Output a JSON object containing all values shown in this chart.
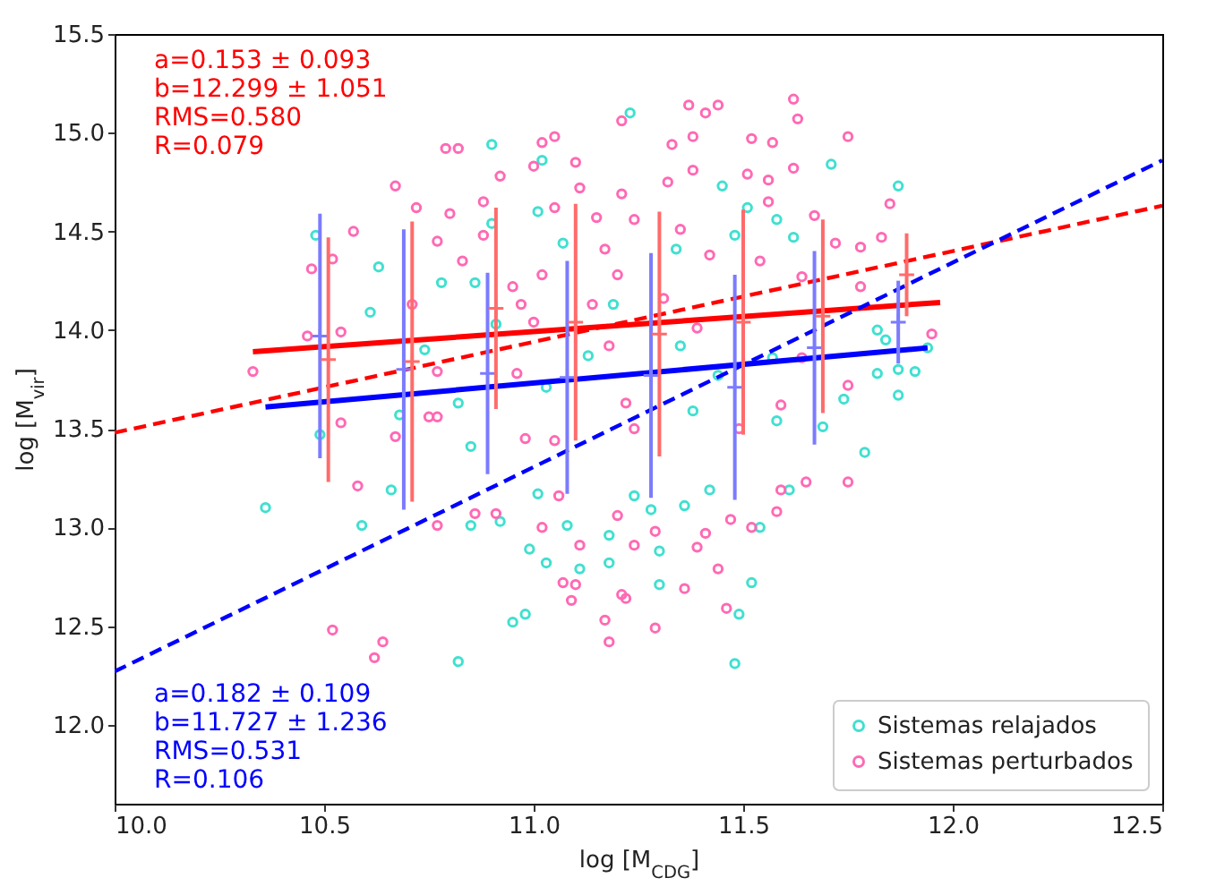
{
  "chart_data": {
    "type": "scatter",
    "xlabel": "log [M$_{CDG}$]",
    "ylabel": "log [M$_{vir}$]",
    "xlim": [
      10.0,
      12.5
    ],
    "ylim": [
      11.6,
      15.5
    ],
    "xticks": [
      {
        "value": 10,
        "label": "10.0"
      },
      {
        "value": 10.5,
        "label": "10.5"
      },
      {
        "value": 11,
        "label": "11.0"
      },
      {
        "value": 11.5,
        "label": "11.5"
      },
      {
        "value": 12,
        "label": "12.0"
      },
      {
        "value": 12.5,
        "label": "12.5"
      }
    ],
    "yticks": [
      {
        "value": 12,
        "label": "12.0"
      },
      {
        "value": 12.5,
        "label": "12.5"
      },
      {
        "value": 13,
        "label": "13.0"
      },
      {
        "value": 13.5,
        "label": "13.5"
      },
      {
        "value": 14,
        "label": "14.0"
      },
      {
        "value": 14.5,
        "label": "14.5"
      },
      {
        "value": 15,
        "label": "15.0"
      },
      {
        "value": 15.5,
        "label": "15.5"
      }
    ],
    "marker": "circle",
    "legend": "bottom right",
    "annotations": [
      "a=0.153 ± 0.093",
      "b=12.299 ± 1.051",
      "RMS=0.580",
      "R=0.079",
      "a=0.182 ± 0.109",
      "b=11.727 ± 1.236",
      "RMS=0.531",
      "R=0.106"
    ],
    "series": [
      {
        "name": "Sistemas relajados",
        "color": "#40e0d0",
        "x": [
          11.23,
          10.9,
          11.02,
          11.01,
          10.9,
          10.48,
          10.63,
          10.61,
          10.78,
          10.86,
          10.91,
          10.74,
          10.82,
          10.68,
          10.49,
          10.85,
          11.03,
          11.13,
          11.19,
          11.07,
          10.36,
          10.59,
          10.66,
          10.85,
          10.92,
          11.01,
          10.99,
          11.03,
          10.98,
          10.95,
          10.82,
          11.08,
          11.11,
          11.18,
          11.18,
          11.87,
          11.71,
          11.51,
          11.58,
          11.45,
          11.48,
          11.62,
          11.34,
          11.82,
          11.84,
          11.82,
          11.87,
          11.91,
          11.87,
          11.94,
          11.79,
          11.74,
          11.57,
          11.44,
          11.35,
          11.38,
          11.58,
          11.69,
          11.48,
          11.49,
          11.52,
          11.3,
          11.3,
          11.54,
          11.36,
          11.42,
          11.61,
          11.28,
          11.24
        ],
        "values": [
          15.1,
          14.94,
          14.86,
          14.6,
          14.54,
          14.48,
          14.32,
          14.09,
          14.24,
          14.24,
          14.03,
          13.9,
          13.63,
          13.57,
          13.47,
          13.41,
          13.71,
          13.87,
          14.13,
          14.44,
          13.1,
          13.01,
          13.19,
          13.01,
          13.03,
          13.17,
          12.89,
          12.82,
          12.56,
          12.52,
          12.32,
          13.01,
          12.79,
          12.82,
          12.96,
          14.73,
          14.84,
          14.62,
          14.56,
          14.73,
          14.48,
          14.47,
          14.41,
          14.0,
          13.95,
          13.78,
          13.8,
          13.79,
          13.67,
          13.91,
          13.38,
          13.65,
          13.86,
          13.77,
          13.92,
          13.59,
          13.54,
          13.51,
          12.31,
          12.56,
          12.72,
          12.71,
          12.88,
          13.0,
          13.11,
          13.19,
          13.19,
          13.09,
          13.16
        ]
      },
      {
        "name": "Sistemas perturbados",
        "color": "#ff69b4",
        "x": [
          10.33,
          10.46,
          10.47,
          10.52,
          10.54,
          10.54,
          10.57,
          10.67,
          10.72,
          10.71,
          10.75,
          10.79,
          10.82,
          10.77,
          10.8,
          10.77,
          10.88,
          10.88,
          10.83,
          10.95,
          10.97,
          11.0,
          10.96,
          10.98,
          11.02,
          11.05,
          11.0,
          10.92,
          11.05,
          11.02,
          11.1,
          11.11,
          11.15,
          11.17,
          11.14,
          11.21,
          11.21,
          11.2,
          11.18,
          11.22,
          11.05,
          11.24,
          10.58,
          10.67,
          10.77,
          10.77,
          10.52,
          10.64,
          10.62,
          10.86,
          10.91,
          11.02,
          11.06,
          11.07,
          11.1,
          11.09,
          11.11,
          11.17,
          11.18,
          11.2,
          11.21,
          11.37,
          11.44,
          11.41,
          11.62,
          11.63,
          11.33,
          11.38,
          11.52,
          11.57,
          11.75,
          11.62,
          11.51,
          11.38,
          11.32,
          11.56,
          11.67,
          11.56,
          11.85,
          11.83,
          11.72,
          11.78,
          11.35,
          11.42,
          11.54,
          11.64,
          11.78,
          11.95,
          11.75,
          11.64,
          11.59,
          11.49,
          11.39,
          11.31,
          11.24,
          11.29,
          11.46,
          11.44,
          11.36,
          11.52,
          11.58,
          11.75,
          11.65,
          11.59,
          11.41,
          11.39,
          11.47,
          11.22,
          11.29,
          11.24
        ],
        "values": [
          13.79,
          13.97,
          14.31,
          14.36,
          13.99,
          13.53,
          14.5,
          14.73,
          14.62,
          14.13,
          13.56,
          14.92,
          14.92,
          14.45,
          14.59,
          13.79,
          14.65,
          14.48,
          14.35,
          14.22,
          14.13,
          14.04,
          13.78,
          13.45,
          14.95,
          14.98,
          14.83,
          14.78,
          14.62,
          14.28,
          14.85,
          14.72,
          14.57,
          14.41,
          14.13,
          15.06,
          14.69,
          14.28,
          13.92,
          13.63,
          13.44,
          13.5,
          13.21,
          13.46,
          13.56,
          13.01,
          12.48,
          12.42,
          12.34,
          13.07,
          13.07,
          13.0,
          13.16,
          12.72,
          12.71,
          12.63,
          12.91,
          12.53,
          12.42,
          13.06,
          12.66,
          15.14,
          15.14,
          15.1,
          15.17,
          15.07,
          14.94,
          14.98,
          14.97,
          14.95,
          14.98,
          14.82,
          14.79,
          14.81,
          14.75,
          14.76,
          14.58,
          14.65,
          14.64,
          14.47,
          14.44,
          14.42,
          14.51,
          14.38,
          14.35,
          14.27,
          14.22,
          13.98,
          13.72,
          13.86,
          13.62,
          13.5,
          14.01,
          14.16,
          14.56,
          12.49,
          12.59,
          12.79,
          12.69,
          13.0,
          13.08,
          13.23,
          13.23,
          13.19,
          12.97,
          12.9,
          13.04,
          12.64,
          12.98,
          12.91
        ]
      },
      {
        "type": "line",
        "marker": "none",
        "color": "#ff0000",
        "line_style": "solid",
        "x": [
          10.33,
          11.97
        ],
        "values": [
          13.89,
          14.14
        ]
      },
      {
        "type": "line",
        "marker": "none",
        "color": "#0000ff",
        "line_style": "solid",
        "x": [
          10.36,
          11.94
        ],
        "values": [
          13.61,
          13.91
        ]
      },
      {
        "type": "line",
        "marker": "none",
        "color": "#ff0000",
        "line_style": "dashed",
        "x": [
          10.0,
          12.5
        ],
        "values": [
          13.48,
          14.63
        ]
      },
      {
        "type": "line",
        "marker": "none",
        "color": "#0000ff",
        "line_style": "dashed",
        "x": [
          10.0,
          12.5
        ],
        "values": [
          12.27,
          14.86
        ]
      },
      {
        "color": "#7b7bff",
        "marker": "cross",
        "x": [
          10.49,
          10.69,
          10.89,
          11.08,
          11.28,
          11.48,
          11.67,
          11.87
        ],
        "values": [
          13.97,
          13.8,
          13.78,
          13.76,
          13.77,
          13.71,
          13.91,
          14.04
        ],
        "errors": [
          0.62,
          0.71,
          0.51,
          0.59,
          0.62,
          0.57,
          0.49,
          0.21
        ]
      },
      {
        "color": "#ff6b6b",
        "marker": "cross",
        "x": [
          10.51,
          10.71,
          10.91,
          11.1,
          11.3,
          11.5,
          11.69,
          11.89
        ],
        "values": [
          13.85,
          13.84,
          14.11,
          14.04,
          13.98,
          14.04,
          14.07,
          14.28
        ],
        "errors": [
          0.62,
          0.71,
          0.51,
          0.6,
          0.62,
          0.57,
          0.49,
          0.21
        ]
      }
    ]
  }
}
